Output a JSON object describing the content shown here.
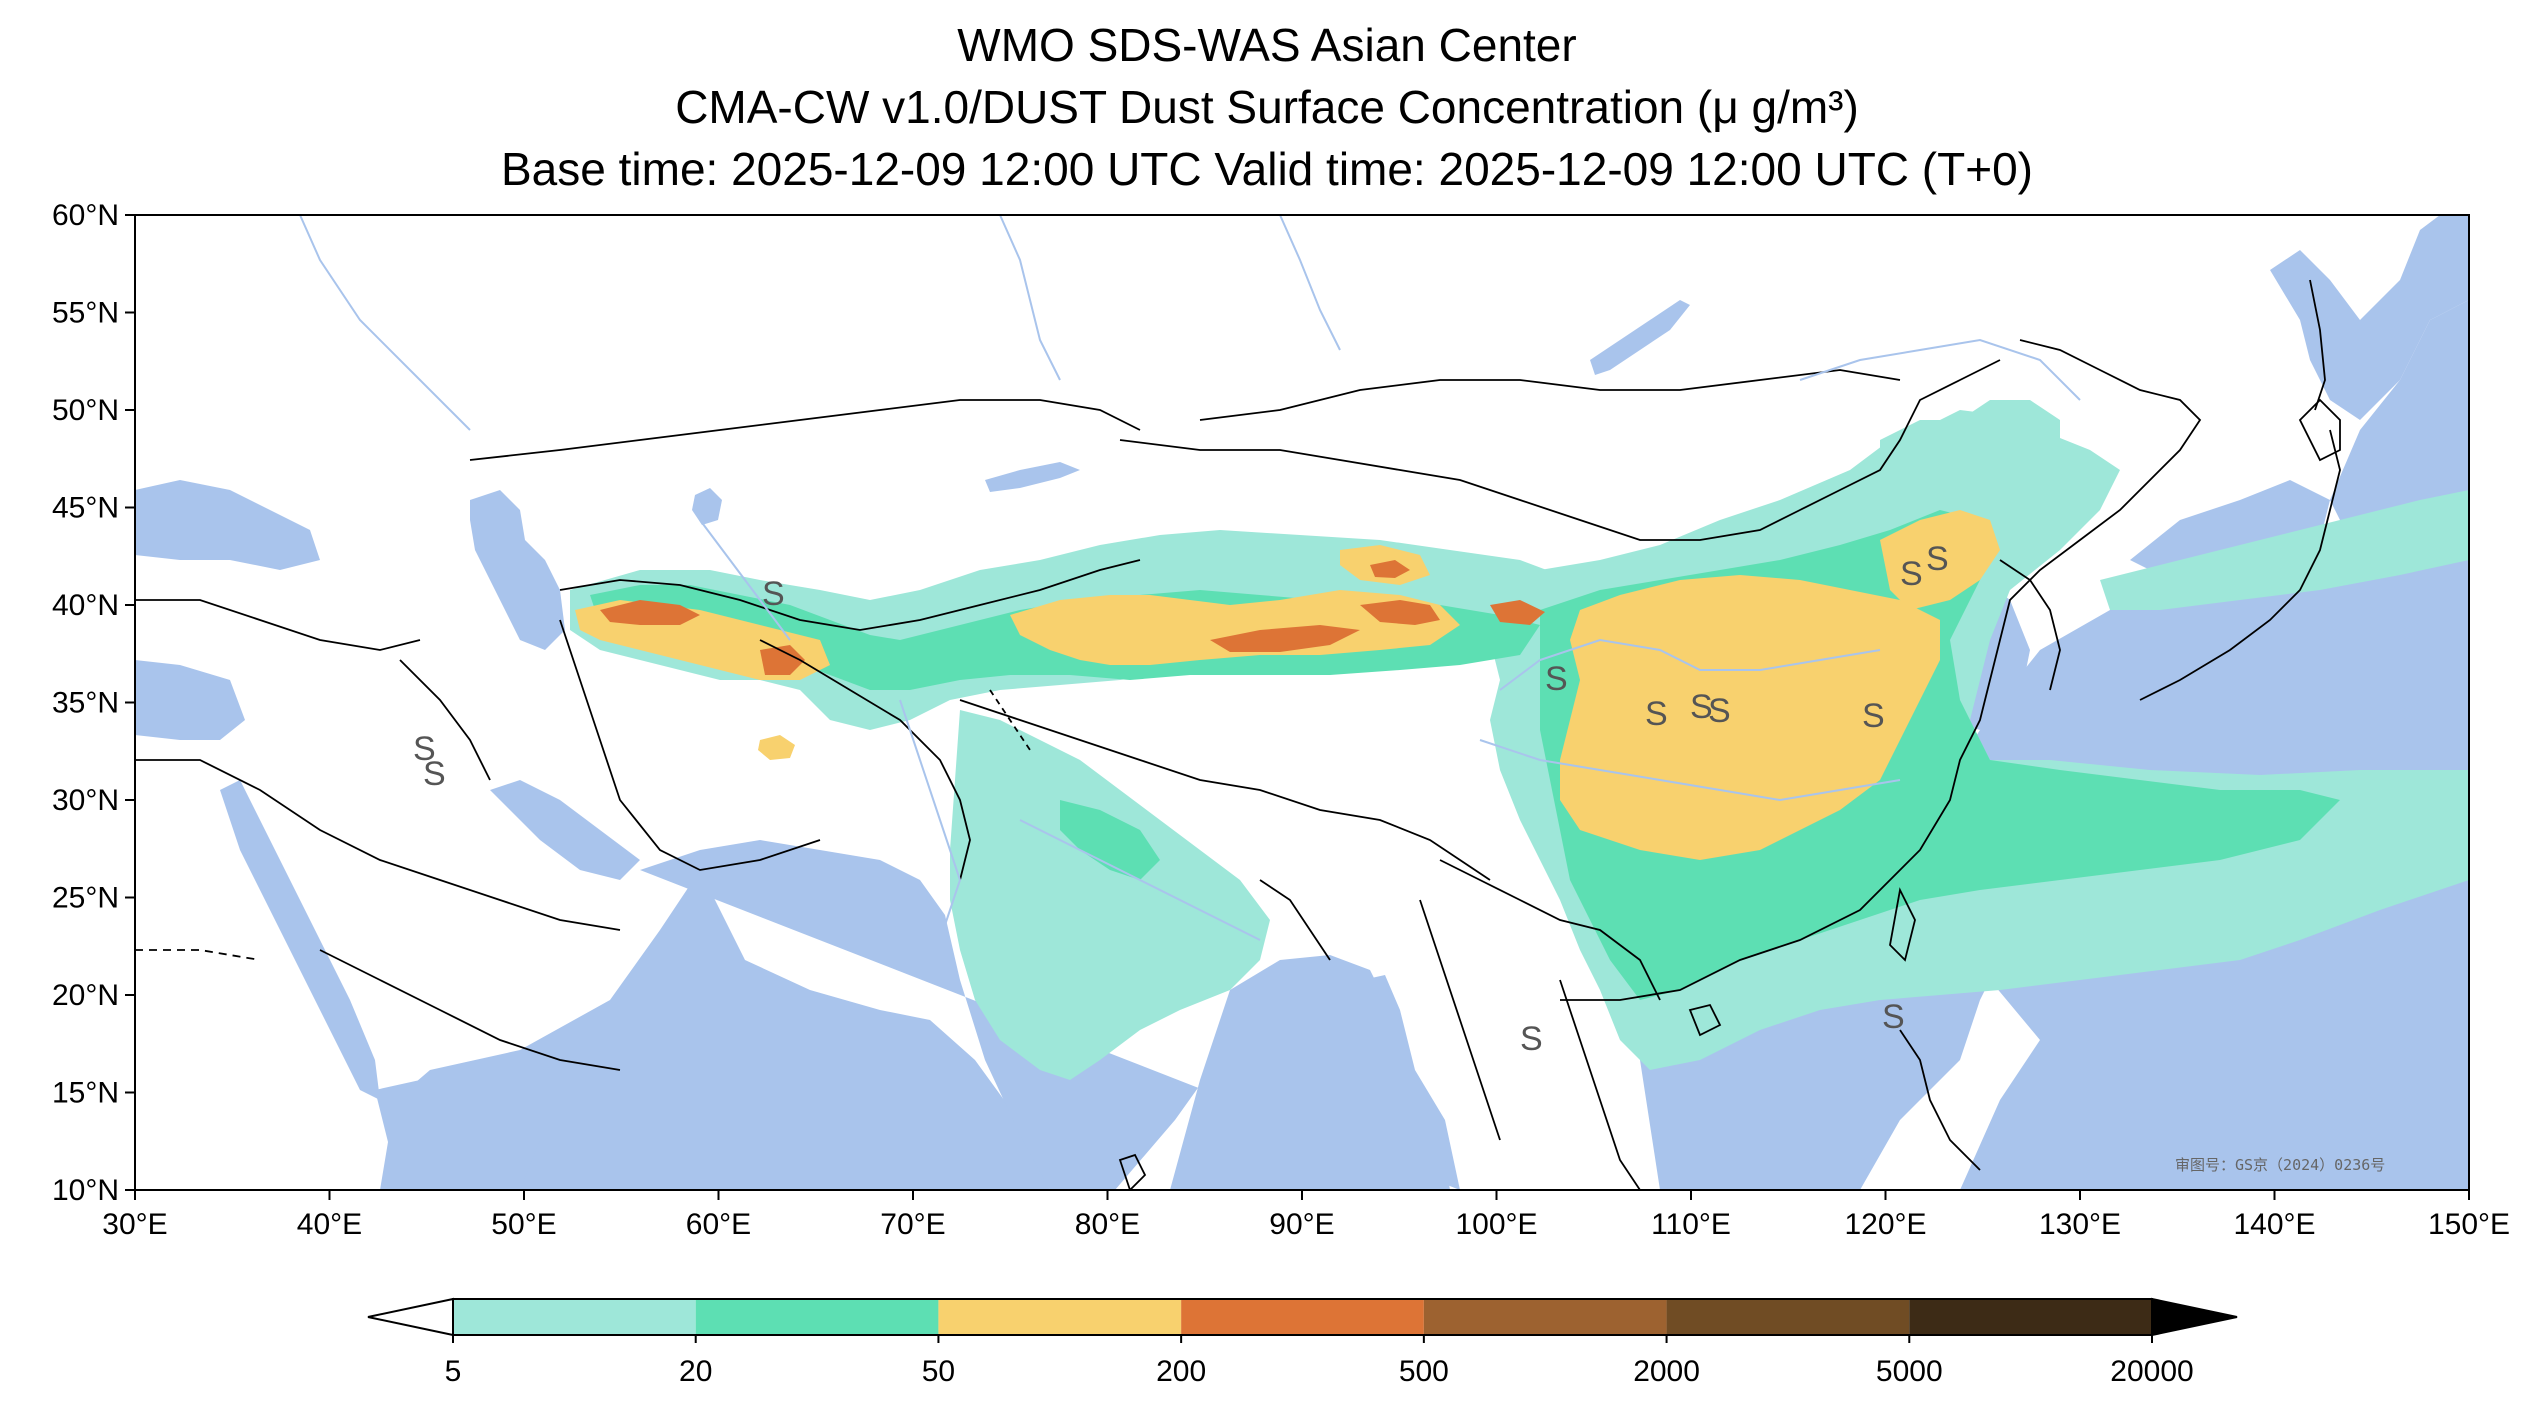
{
  "title": {
    "line1": "WMO SDS-WAS Asian Center",
    "line2": "CMA-CW v1.0/DUST Dust Surface Concentration (μ g/m³)",
    "line3": "Base time: 2025-12-09 12:00 UTC Valid time: 2025-12-09 12:00 UTC (T+0)"
  },
  "map": {
    "lon_range": [
      30,
      150
    ],
    "lat_range": [
      10,
      60
    ],
    "lon_ticks": [
      "30°E",
      "40°E",
      "50°E",
      "60°E",
      "70°E",
      "80°E",
      "90°E",
      "100°E",
      "110°E",
      "120°E",
      "130°E",
      "140°E",
      "150°E"
    ],
    "lat_ticks": [
      "60°N",
      "55°N",
      "50°N",
      "45°N",
      "40°N",
      "35°N",
      "30°N",
      "25°N",
      "20°N",
      "15°N",
      "10°N"
    ],
    "approval_number": "审图号：GS京（2024）0236号",
    "colors": {
      "ocean": "#a9c4ec",
      "land": "#ffffff",
      "border": "#000000",
      "river": "#a9c4ec"
    }
  },
  "colorbar": {
    "labels": [
      "5",
      "20",
      "50",
      "200",
      "500",
      "2000",
      "5000",
      "20000"
    ],
    "colors": [
      "#9ee7d9",
      "#5ddfb3",
      "#f8d16e",
      "#dd7436",
      "#9d6230",
      "#704c24",
      "#3d2b16"
    ],
    "extend_low_color": "#ffffff",
    "extend_high_color": "#000000"
  },
  "dust_levels": {
    "light": "#9ee7d9",
    "moderate": "#5ddfb3",
    "heavy": "#f8d16e",
    "severe": "#dd7436",
    "extreme": "#9d6230"
  },
  "symbols": {
    "sandstorm_glyph": "S"
  }
}
